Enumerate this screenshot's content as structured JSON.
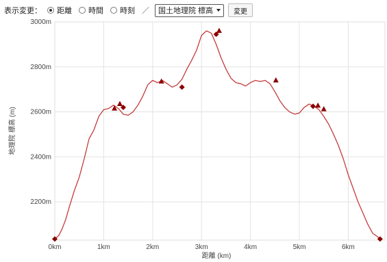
{
  "controls": {
    "display_label": "表示変更：",
    "options": [
      {
        "label": "距離",
        "checked": true
      },
      {
        "label": "時間",
        "checked": false
      },
      {
        "label": "時刻",
        "checked": false
      }
    ],
    "separator": "／",
    "elevation_select": "国土地理院 標高",
    "change_button": "変更"
  },
  "chart_data": {
    "type": "line",
    "xlabel": "距離 (km)",
    "ylabel": "地理院 標高 (m)",
    "xlim": [
      0,
      6.75
    ],
    "ylim": [
      2030,
      3000
    ],
    "x_ticks": [
      "0km",
      "1km",
      "2km",
      "3km",
      "4km",
      "5km",
      "6km"
    ],
    "x_tick_values": [
      0,
      1,
      2,
      3,
      4,
      5,
      6
    ],
    "y_ticks": [
      "2200m",
      "2400m",
      "2600m",
      "2800m",
      "3000m"
    ],
    "y_tick_values": [
      2200,
      2400,
      2600,
      2800,
      3000
    ],
    "grid": true,
    "line_color": "#c53b3b",
    "marker_color": "#8b0000",
    "series": [
      {
        "x": [
          0,
          0.08,
          0.15,
          0.22,
          0.3,
          0.4,
          0.5,
          0.6,
          0.7,
          0.8,
          0.9,
          1.0,
          1.1,
          1.2,
          1.3,
          1.4,
          1.5,
          1.6,
          1.7,
          1.8,
          1.9,
          2.0,
          2.1,
          2.2,
          2.3,
          2.4,
          2.5,
          2.6,
          2.7,
          2.8,
          2.9,
          3.0,
          3.1,
          3.2,
          3.3,
          3.35,
          3.4,
          3.5,
          3.6,
          3.7,
          3.8,
          3.9,
          4.0,
          4.1,
          4.2,
          4.3,
          4.4,
          4.5,
          4.6,
          4.7,
          4.8,
          4.9,
          5.0,
          5.1,
          5.2,
          5.3,
          5.4,
          5.5,
          5.6,
          5.7,
          5.8,
          5.9,
          6.0,
          6.1,
          6.2,
          6.3,
          6.4,
          6.5,
          6.6,
          6.65
        ],
        "y": [
          2035,
          2050,
          2080,
          2120,
          2180,
          2250,
          2310,
          2390,
          2480,
          2520,
          2580,
          2610,
          2615,
          2630,
          2615,
          2590,
          2585,
          2600,
          2630,
          2670,
          2720,
          2740,
          2730,
          2740,
          2725,
          2710,
          2720,
          2745,
          2790,
          2830,
          2875,
          2940,
          2960,
          2950,
          2900,
          2870,
          2840,
          2790,
          2750,
          2730,
          2725,
          2715,
          2730,
          2740,
          2735,
          2740,
          2725,
          2690,
          2650,
          2620,
          2600,
          2590,
          2595,
          2620,
          2635,
          2625,
          2610,
          2580,
          2545,
          2500,
          2450,
          2390,
          2320,
          2260,
          2200,
          2150,
          2100,
          2060,
          2045,
          2035
        ]
      }
    ],
    "markers": [
      {
        "x": 0,
        "y": 2035,
        "shape": "diamond"
      },
      {
        "x": 1.22,
        "y": 2615,
        "shape": "triangle"
      },
      {
        "x": 1.33,
        "y": 2635,
        "shape": "triangle"
      },
      {
        "x": 1.4,
        "y": 2620,
        "shape": "diamond"
      },
      {
        "x": 2.18,
        "y": 2735,
        "shape": "triangle"
      },
      {
        "x": 2.6,
        "y": 2710,
        "shape": "diamond"
      },
      {
        "x": 3.3,
        "y": 2945,
        "shape": "diamond"
      },
      {
        "x": 3.36,
        "y": 2960,
        "shape": "triangle"
      },
      {
        "x": 4.52,
        "y": 2740,
        "shape": "triangle"
      },
      {
        "x": 5.28,
        "y": 2625,
        "shape": "diamond"
      },
      {
        "x": 5.38,
        "y": 2628,
        "shape": "triangle"
      },
      {
        "x": 5.5,
        "y": 2612,
        "shape": "triangle"
      },
      {
        "x": 6.65,
        "y": 2035,
        "shape": "diamond"
      }
    ]
  }
}
